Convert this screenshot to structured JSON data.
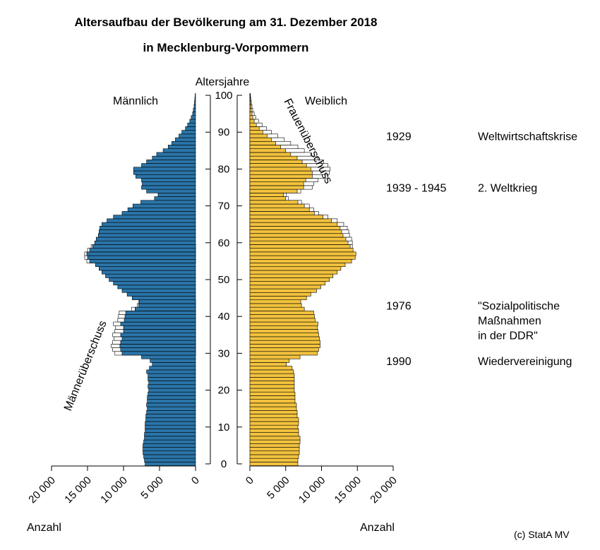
{
  "title_line1": "Altersaufbau der Bevölkerung am 31. Dezember 2018",
  "title_line2": "in Mecklenburg-Vorpommern",
  "age_axis_label": "Altersjahre",
  "label_male": "Männlich",
  "label_female": "Weiblich",
  "label_female_surplus": "Frauenüberschuss",
  "label_male_surplus": "Männerüberschuss",
  "count_label": "Anzahl",
  "source": "(c) StatA MV",
  "events": [
    {
      "year": "1929",
      "text": [
        "Weltwirtschaftskrise"
      ],
      "age": 89
    },
    {
      "year": "1939 - 1945",
      "text": [
        "2. Weltkrieg"
      ],
      "age": 75
    },
    {
      "year": "1976",
      "text": [
        "\"Sozialpolitische",
        "Maßnahmen",
        "in der DDR\""
      ],
      "age": 43
    },
    {
      "year": "1990",
      "text": [
        "Wiedervereinigung"
      ],
      "age": 28
    }
  ],
  "colors": {
    "male": "#2a74a8",
    "female": "#f2c23e",
    "surplus": "#ffffff",
    "outline": "#000000"
  },
  "chart_data": {
    "type": "bar",
    "orientation": "horizontal-population-pyramid",
    "age_ticks": [
      0,
      10,
      20,
      30,
      40,
      50,
      60,
      70,
      80,
      90,
      100
    ],
    "x_ticks": [
      0,
      5000,
      10000,
      15000,
      20000
    ],
    "x_tick_labels": [
      "0",
      "5 000",
      "10 000",
      "15 000",
      "20 000"
    ],
    "xlim": [
      0,
      20000
    ],
    "ylim": [
      0,
      100
    ],
    "ages": [
      0,
      1,
      2,
      3,
      4,
      5,
      6,
      7,
      8,
      9,
      10,
      11,
      12,
      13,
      14,
      15,
      16,
      17,
      18,
      19,
      20,
      21,
      22,
      23,
      24,
      25,
      26,
      27,
      28,
      29,
      30,
      31,
      32,
      33,
      34,
      35,
      36,
      37,
      38,
      39,
      40,
      41,
      42,
      43,
      44,
      45,
      46,
      47,
      48,
      49,
      50,
      51,
      52,
      53,
      54,
      55,
      56,
      57,
      58,
      59,
      60,
      61,
      62,
      63,
      64,
      65,
      66,
      67,
      68,
      69,
      70,
      71,
      72,
      73,
      74,
      75,
      76,
      77,
      78,
      79,
      80,
      81,
      82,
      83,
      84,
      85,
      86,
      87,
      88,
      89,
      90,
      91,
      92,
      93,
      94,
      95,
      96,
      97,
      98,
      99,
      100
    ],
    "series": [
      {
        "name": "Männlich",
        "values": [
          7000,
          7100,
          7200,
          7300,
          7300,
          7300,
          7200,
          7100,
          7100,
          7000,
          7000,
          7000,
          6900,
          6900,
          6800,
          6700,
          6800,
          6700,
          6700,
          6600,
          6500,
          6600,
          6500,
          6600,
          6600,
          6800,
          6400,
          6000,
          6300,
          7500,
          10200,
          10400,
          10500,
          10400,
          10200,
          10400,
          10000,
          10000,
          10400,
          9900,
          9800,
          9700,
          8400,
          7900,
          7800,
          8800,
          9500,
          10200,
          10800,
          11400,
          12000,
          12500,
          13000,
          13400,
          13900,
          14700,
          15000,
          15100,
          14700,
          14300,
          14000,
          13800,
          13500,
          13400,
          13300,
          13000,
          12300,
          11400,
          10200,
          9400,
          8700,
          7600,
          5700,
          5200,
          6800,
          7500,
          7400,
          7500,
          8300,
          8600,
          8600,
          7500,
          6800,
          6000,
          5400,
          4500,
          3800,
          3300,
          2800,
          2300,
          1900,
          1400,
          1100,
          800,
          600,
          400,
          300,
          200,
          150,
          100,
          50
        ]
      },
      {
        "name": "Männerüberschuss",
        "values": [
          0,
          0,
          0,
          0,
          0,
          0,
          0,
          0,
          0,
          0,
          0,
          0,
          0,
          0,
          0,
          0,
          0,
          0,
          0,
          0,
          0,
          0,
          0,
          0,
          0,
          0,
          0,
          0,
          0,
          0,
          1000,
          1100,
          1200,
          1100,
          1100,
          1100,
          1200,
          1100,
          1000,
          900,
          900,
          900,
          500,
          200,
          100,
          0,
          0,
          0,
          0,
          0,
          0,
          0,
          0,
          0,
          0,
          400,
          400,
          300,
          300,
          200,
          0,
          0,
          0,
          0,
          0,
          0,
          0,
          0,
          0,
          0,
          0,
          0,
          0,
          0,
          0,
          0,
          0,
          0,
          0,
          0,
          0,
          0,
          0,
          0,
          0,
          0,
          0,
          0,
          0,
          0,
          0,
          0,
          0,
          0,
          0,
          0,
          0,
          0,
          0,
          0,
          0
        ]
      },
      {
        "name": "Weiblich",
        "values": [
          6700,
          6700,
          6800,
          6900,
          6900,
          6900,
          7000,
          7000,
          6800,
          6800,
          6700,
          6800,
          6800,
          6600,
          6600,
          6500,
          6500,
          6300,
          6300,
          6300,
          6200,
          6200,
          6200,
          6200,
          6200,
          6100,
          5900,
          5100,
          5500,
          7000,
          9400,
          9600,
          9800,
          9800,
          9700,
          9600,
          9500,
          9400,
          9500,
          9100,
          9000,
          8900,
          7600,
          7200,
          7100,
          7900,
          8500,
          9300,
          9900,
          10500,
          11100,
          11600,
          12200,
          12700,
          13300,
          14200,
          14700,
          14800,
          14400,
          14000,
          13700,
          13400,
          13000,
          12800,
          12600,
          12200,
          11400,
          10200,
          9000,
          8300,
          7600,
          6700,
          5000,
          4700,
          6600,
          7500,
          7500,
          7800,
          8700,
          8700,
          8500,
          7900,
          7300,
          6600,
          5700,
          5000,
          4300,
          3600,
          3000,
          2400,
          1800,
          1300,
          900,
          600,
          400,
          300,
          200,
          150,
          100,
          50,
          30
        ]
      },
      {
        "name": "Frauenüberschuss",
        "values": [
          0,
          0,
          0,
          0,
          0,
          0,
          0,
          0,
          0,
          0,
          0,
          0,
          0,
          0,
          0,
          0,
          0,
          0,
          0,
          0,
          0,
          0,
          0,
          0,
          0,
          0,
          0,
          0,
          0,
          0,
          0,
          0,
          0,
          0,
          0,
          0,
          0,
          0,
          0,
          0,
          0,
          0,
          0,
          0,
          0,
          0,
          0,
          0,
          0,
          0,
          0,
          0,
          0,
          0,
          0,
          0,
          0,
          0,
          0,
          300,
          600,
          800,
          900,
          1000,
          1000,
          900,
          800,
          700,
          600,
          600,
          700,
          500,
          400,
          400,
          500,
          1200,
          1400,
          1700,
          2200,
          2400,
          2700,
          3000,
          3000,
          2900,
          2800,
          2600,
          2400,
          2100,
          1800,
          1500,
          1200,
          1000,
          800,
          600,
          400,
          300,
          200,
          150,
          100,
          80,
          50
        ]
      }
    ]
  }
}
